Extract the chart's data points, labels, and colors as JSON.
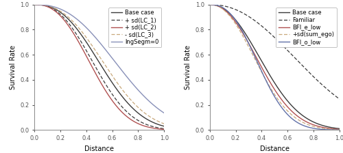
{
  "left": {
    "curves": [
      {
        "label": "Base case",
        "lambda": 3.5,
        "k": 2.5,
        "color": "#3a3a3a",
        "ls": "-",
        "lw": 1.0,
        "dashes": null
      },
      {
        "label": "+ sd(LC_1)",
        "lambda": 4.5,
        "k": 2.5,
        "color": "#3a3a3a",
        "ls": "--",
        "lw": 0.9,
        "dashes": [
          4,
          2
        ]
      },
      {
        "label": "+ sd(LC_2)",
        "lambda": 5.2,
        "k": 2.5,
        "color": "#b05050",
        "ls": "-",
        "lw": 1.0,
        "dashes": null
      },
      {
        "label": "- sd(LC_3)",
        "lambda": 3.0,
        "k": 2.5,
        "color": "#c8a87a",
        "ls": "--",
        "lw": 0.9,
        "dashes": [
          4,
          2
        ]
      },
      {
        "label": "lngSegm=0",
        "lambda": 2.0,
        "k": 2.5,
        "color": "#8890b8",
        "ls": "-",
        "lw": 1.0,
        "dashes": null
      }
    ],
    "xlabel": "Distance",
    "ylabel": "Survival Rate",
    "xlim": [
      0.0,
      1.0
    ],
    "ylim": [
      0.0,
      1.0
    ]
  },
  "right": {
    "curves": [
      {
        "label": "Base case",
        "lambda": 4.5,
        "k": 2.2,
        "color": "#3a3a3a",
        "ls": "-",
        "lw": 1.0,
        "dashes": null
      },
      {
        "label": "Familiar",
        "lambda": 1.4,
        "k": 2.2,
        "color": "#3a3a3a",
        "ls": "--",
        "lw": 0.9,
        "dashes": [
          4,
          2
        ]
      },
      {
        "label": "BFI_e_low",
        "lambda": 5.2,
        "k": 2.2,
        "color": "#b05050",
        "ls": "-",
        "lw": 1.0,
        "dashes": null
      },
      {
        "label": "+sd(sum_ego)",
        "lambda": 5.8,
        "k": 2.2,
        "color": "#c8a87a",
        "ls": "--",
        "lw": 0.9,
        "dashes": [
          4,
          2
        ]
      },
      {
        "label": "BFI_o_low",
        "lambda": 7.5,
        "k": 2.5,
        "color": "#6070a8",
        "ls": "-",
        "lw": 1.0,
        "dashes": null
      }
    ],
    "xlabel": "Distance",
    "ylabel": "Survival Rate",
    "xlim": [
      0.0,
      1.0
    ],
    "ylim": [
      0.0,
      1.0
    ]
  },
  "fig_bg": "#ffffff",
  "ax_bg": "#ffffff",
  "legend_fontsize": 6.0,
  "tick_fontsize": 6.0,
  "label_fontsize": 7.0,
  "spine_color": "#888888",
  "tick_color": "#555555"
}
